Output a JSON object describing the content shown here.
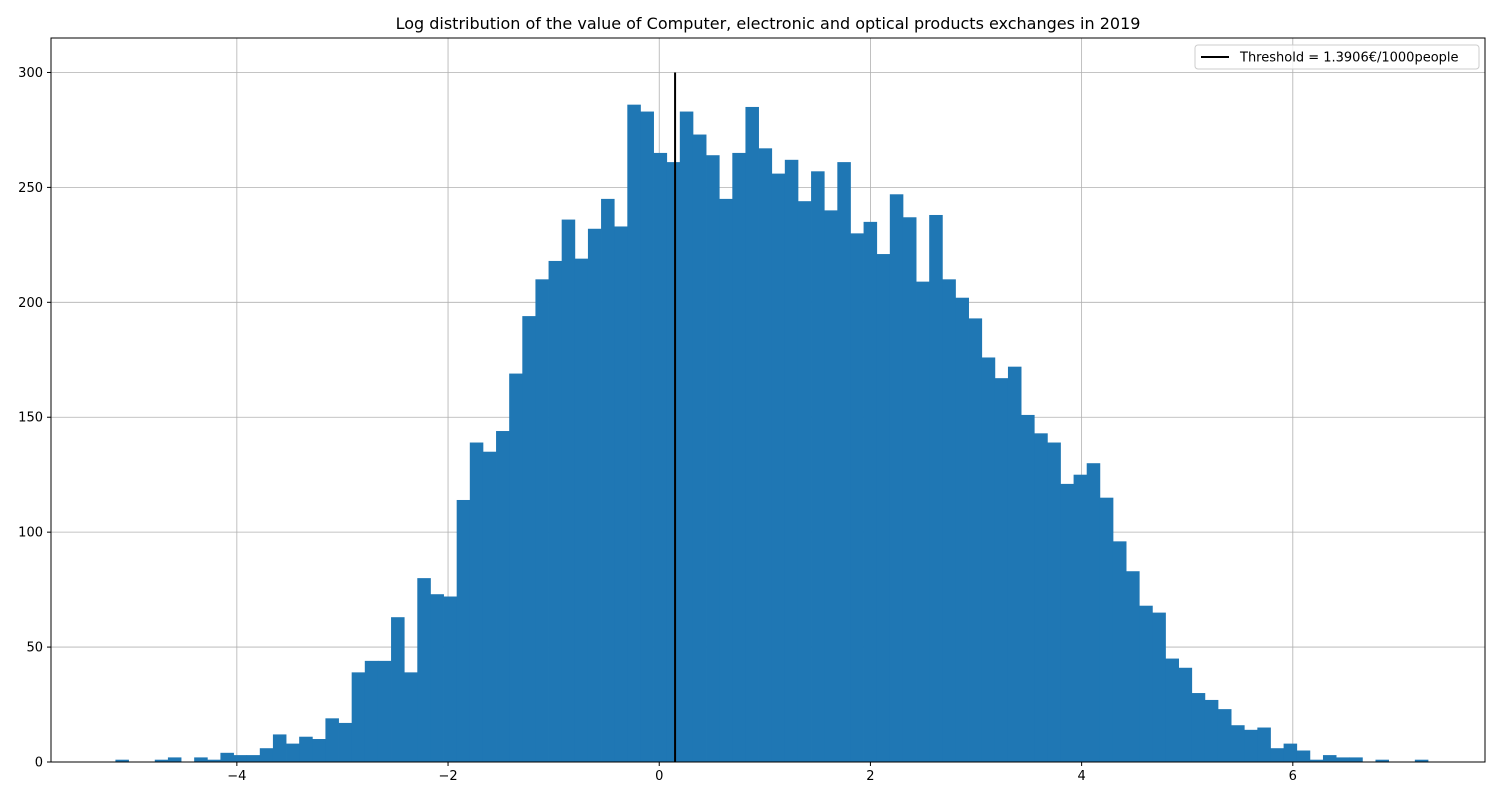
{
  "chart_data": {
    "type": "bar",
    "title": "Log distribution of the value of Computer, electronic and optical products exchanges in 2019",
    "xlabel": "",
    "ylabel": "",
    "xlim": [
      -5.76,
      7.82
    ],
    "ylim": [
      0,
      315
    ],
    "xticks": [
      -4,
      -2,
      0,
      2,
      4,
      6
    ],
    "xtick_labels": [
      "−4",
      "−2",
      "0",
      "2",
      "4",
      "6"
    ],
    "yticks": [
      0,
      50,
      100,
      150,
      200,
      250,
      300
    ],
    "ytick_labels": [
      "0",
      "50",
      "100",
      "150",
      "200",
      "250",
      "300"
    ],
    "grid": true,
    "legend_position": "top-right",
    "bar_color": "#1f77b4",
    "bin_start": -5.15,
    "bin_width": 0.1243,
    "counts": [
      1,
      0,
      0,
      1,
      2,
      0,
      2,
      1,
      4,
      3,
      3,
      6,
      12,
      8,
      11,
      10,
      19,
      17,
      39,
      44,
      44,
      63,
      39,
      80,
      73,
      72,
      114,
      139,
      135,
      144,
      169,
      194,
      210,
      218,
      236,
      219,
      232,
      245,
      233,
      286,
      283,
      265,
      261,
      283,
      273,
      264,
      245,
      265,
      285,
      267,
      256,
      262,
      244,
      257,
      240,
      261,
      230,
      235,
      221,
      247,
      237,
      209,
      238,
      210,
      202,
      193,
      176,
      167,
      172,
      151,
      143,
      139,
      121,
      125,
      130,
      115,
      96,
      83,
      68,
      65,
      45,
      41,
      30,
      27,
      23,
      16,
      14,
      15,
      6,
      8,
      5,
      1,
      3,
      2,
      2,
      0,
      1,
      0,
      0,
      1
    ],
    "threshold": {
      "label": "Threshold = 1.3906€/1000people",
      "x": 0.15,
      "y_top": 300,
      "color": "#000000"
    }
  }
}
